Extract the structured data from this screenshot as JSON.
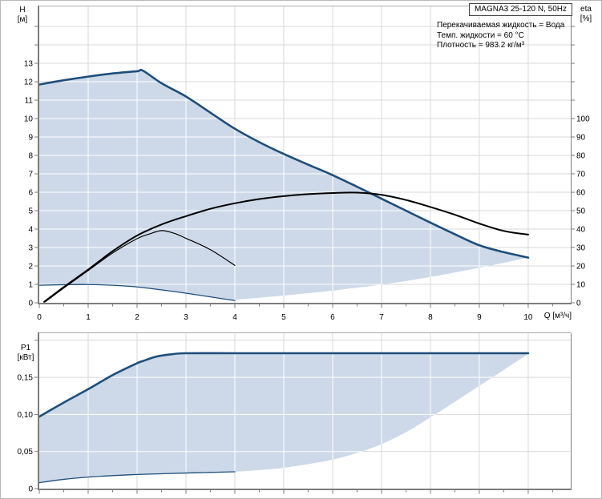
{
  "header": {
    "model": "MAGNA3 25-120 N, 50Hz",
    "info_lines": [
      "Перекачиваемая жидкость = Вода",
      "Темп. жидкости = 60 °C",
      "Плотность = 983.2 кг/м³"
    ]
  },
  "axes_labels": {
    "head_name": "H",
    "head_unit": "[м]",
    "eta_name": "eta",
    "eta_unit": "[%]",
    "power_name": "P1",
    "power_unit": "[кВт]",
    "flow_label": "Q [м³/ч]"
  },
  "colors": {
    "curve_blue": "#1f4e7a",
    "envelope_fill": "#cdd9e8",
    "curve_black": "#000000",
    "grid": "#d9d9d9",
    "grid_in_envelope": "#ffffff",
    "axis_dark": "#7d7d7d",
    "axis_light": "#ababab",
    "text": "#000000"
  },
  "chart_data": [
    {
      "id": "head-flow",
      "type": "line",
      "title": "MAGNA3 25-120 N, 50Hz pump curve",
      "xlabel": "Q [м³/ч]",
      "ylabel_left": "H [м]",
      "ylabel_right": "eta [%]",
      "grid": true,
      "xlim": [
        0,
        10.87
      ],
      "ylim_left": [
        0,
        16.09
      ],
      "ylim_right": [
        0,
        160.9
      ],
      "x_tick_values": [
        0,
        1,
        2,
        3,
        4,
        5,
        6,
        7,
        8,
        9,
        10
      ],
      "x_tick_labels": [
        "0",
        "1",
        "2",
        "3",
        "4",
        "5",
        "6",
        "7",
        "8",
        "9",
        "10"
      ],
      "x_minor_step": 0.5,
      "y_left_tick_values": [
        0,
        1,
        2,
        3,
        4,
        5,
        6,
        7,
        8,
        9,
        10,
        11,
        12,
        13
      ],
      "y_left_tick_labels": [
        "0",
        "1",
        "2",
        "3",
        "4",
        "5",
        "6",
        "7",
        "8",
        "9",
        "10",
        "11",
        "12",
        "13"
      ],
      "y_left_unlabeled_ticks": [
        14,
        15
      ],
      "y_right_tick_values": [
        0,
        10,
        20,
        30,
        40,
        50,
        60,
        70,
        80,
        90,
        100
      ],
      "y_right_tick_labels": [
        "0",
        "10",
        "20",
        "30",
        "40",
        "50",
        "60",
        "70",
        "80",
        "90",
        "100"
      ],
      "y_right_unlabeled_ticks": [
        110,
        120,
        130,
        140,
        150
      ],
      "series": [
        {
          "name": "head-max-speed",
          "axis": "left",
          "width": 2.6,
          "color_key": "curve_blue",
          "points": [
            [
              0,
              11.85
            ],
            [
              0.5,
              12.08
            ],
            [
              1,
              12.28
            ],
            [
              1.5,
              12.45
            ],
            [
              2,
              12.57
            ],
            [
              2.12,
              12.6
            ],
            [
              2.5,
              11.92
            ],
            [
              3,
              11.2
            ],
            [
              3.5,
              10.32
            ],
            [
              4,
              9.45
            ],
            [
              4.5,
              8.72
            ],
            [
              5,
              8.08
            ],
            [
              5.5,
              7.5
            ],
            [
              6,
              6.93
            ],
            [
              6.5,
              6.3
            ],
            [
              7,
              5.65
            ],
            [
              7.5,
              5.0
            ],
            [
              8,
              4.35
            ],
            [
              8.5,
              3.72
            ],
            [
              9,
              3.12
            ],
            [
              9.5,
              2.75
            ],
            [
              10,
              2.45
            ]
          ]
        },
        {
          "name": "head-min-speed",
          "axis": "left",
          "width": 1.3,
          "color_key": "curve_blue",
          "points": [
            [
              0,
              0.95
            ],
            [
              0.5,
              0.98
            ],
            [
              1,
              0.99
            ],
            [
              1.5,
              0.95
            ],
            [
              2,
              0.86
            ],
            [
              2.5,
              0.7
            ],
            [
              3,
              0.52
            ],
            [
              3.5,
              0.32
            ],
            [
              4,
              0.12
            ]
          ]
        },
        {
          "name": "efficiency-max-speed",
          "axis": "right",
          "width": 2.0,
          "color_key": "curve_black",
          "points": [
            [
              0.1,
              0.5
            ],
            [
              0.5,
              8.5
            ],
            [
              1,
              18
            ],
            [
              1.5,
              28
            ],
            [
              2,
              36.5
            ],
            [
              2.5,
              42.5
            ],
            [
              3,
              47
            ],
            [
              3.5,
              51
            ],
            [
              4,
              54
            ],
            [
              4.5,
              56.3
            ],
            [
              5,
              57.9
            ],
            [
              5.5,
              59
            ],
            [
              6,
              59.6
            ],
            [
              6.5,
              59.8
            ],
            [
              7,
              58.6
            ],
            [
              7.5,
              55.8
            ],
            [
              8,
              52
            ],
            [
              8.5,
              47.8
            ],
            [
              9,
              43
            ],
            [
              9.5,
              39
            ],
            [
              10,
              37
            ]
          ]
        },
        {
          "name": "efficiency-min-speed",
          "axis": "right",
          "width": 1.2,
          "color_key": "curve_black",
          "points": [
            [
              0.12,
              0.5
            ],
            [
              0.5,
              8
            ],
            [
              1,
              17.5
            ],
            [
              1.5,
              27
            ],
            [
              2,
              34.8
            ],
            [
              2.25,
              37.3
            ],
            [
              2.5,
              39.2
            ],
            [
              2.75,
              37.8
            ],
            [
              3,
              35
            ],
            [
              3.5,
              28.8
            ],
            [
              4,
              20.3
            ]
          ]
        }
      ],
      "envelope": {
        "fill_key": "envelope_fill",
        "upper_series": "head-max-speed",
        "lower_series": "head-min-speed",
        "closing_points": [
          [
            4,
            0.16
          ],
          [
            4.5,
            0.27
          ],
          [
            5,
            0.39
          ],
          [
            5.5,
            0.52
          ],
          [
            6,
            0.66
          ],
          [
            6.5,
            0.82
          ],
          [
            7,
            0.99
          ],
          [
            7.5,
            1.18
          ],
          [
            8,
            1.4
          ],
          [
            8.5,
            1.64
          ],
          [
            9,
            1.9
          ],
          [
            9.5,
            2.17
          ],
          [
            10,
            2.45
          ]
        ]
      }
    },
    {
      "id": "power-flow",
      "type": "line",
      "title": "P1 power curve",
      "xlabel": "",
      "ylabel_left": "P1 [кВт]",
      "ylabel_right": null,
      "grid": true,
      "xlim": [
        0,
        10.87
      ],
      "ylim_left": [
        0,
        0.2095
      ],
      "ylim_right": null,
      "x_tick_values": [
        0,
        1,
        2,
        3,
        4,
        5,
        6,
        7,
        8,
        9,
        10
      ],
      "x_tick_labels": [],
      "x_minor_step": 0.5,
      "y_left_tick_values": [
        0,
        0.05,
        0.1,
        0.15
      ],
      "y_left_tick_labels": [
        "0",
        "0,05",
        "0,10",
        "0,15"
      ],
      "y_left_unlabeled_ticks": [
        0.2
      ],
      "y_right_tick_values": [],
      "y_right_tick_labels": [],
      "y_right_unlabeled_ticks": [],
      "series": [
        {
          "name": "p1-max-speed",
          "axis": "left",
          "width": 2.6,
          "color_key": "curve_blue",
          "points": [
            [
              0,
              0.097
            ],
            [
              0.5,
              0.116
            ],
            [
              1,
              0.134
            ],
            [
              1.5,
              0.153
            ],
            [
              2,
              0.169
            ],
            [
              2.12,
              0.172
            ],
            [
              2.4,
              0.178
            ],
            [
              2.7,
              0.181
            ],
            [
              3,
              0.1825
            ],
            [
              4,
              0.1825
            ],
            [
              5,
              0.1825
            ],
            [
              6,
              0.1825
            ],
            [
              7,
              0.1825
            ],
            [
              8,
              0.1825
            ],
            [
              9,
              0.1825
            ],
            [
              10,
              0.1825
            ]
          ]
        },
        {
          "name": "p1-min-speed",
          "axis": "left",
          "width": 1.3,
          "color_key": "curve_blue",
          "points": [
            [
              0,
              0.008
            ],
            [
              0.5,
              0.0125
            ],
            [
              1,
              0.0155
            ],
            [
              1.5,
              0.0175
            ],
            [
              2,
              0.019
            ],
            [
              2.5,
              0.02
            ],
            [
              3,
              0.021
            ],
            [
              3.5,
              0.0218
            ],
            [
              4,
              0.0227
            ]
          ]
        }
      ],
      "envelope": {
        "fill_key": "envelope_fill",
        "upper_series": "p1-max-speed",
        "lower_series": "p1-min-speed",
        "closing_points": [
          [
            4,
            0.0227
          ],
          [
            4.5,
            0.025
          ],
          [
            5,
            0.028
          ],
          [
            5.5,
            0.033
          ],
          [
            6,
            0.039
          ],
          [
            6.5,
            0.048
          ],
          [
            7,
            0.06
          ],
          [
            7.5,
            0.076
          ],
          [
            8,
            0.096
          ],
          [
            8.5,
            0.117
          ],
          [
            9,
            0.1385
          ],
          [
            9.5,
            0.16
          ],
          [
            10,
            0.1815
          ]
        ]
      }
    }
  ]
}
